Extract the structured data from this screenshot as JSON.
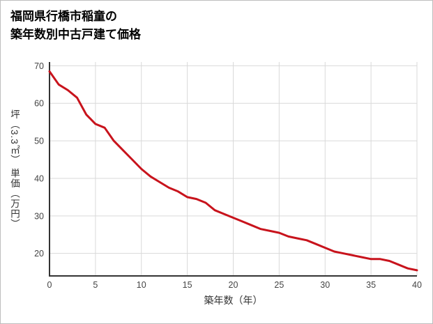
{
  "title": {
    "line1": "福岡県行橋市稲童の",
    "line2": "築年数別中古戸建て価格"
  },
  "chart_data": {
    "type": "line",
    "title": "福岡県行橋市稲童の築年数別中古戸建て価格",
    "xlabel": "築年数（年）",
    "ylabel": "坪（3.3㎡） 単価（万円）",
    "x": [
      0,
      1,
      2,
      3,
      4,
      5,
      6,
      7,
      8,
      9,
      10,
      11,
      12,
      13,
      14,
      15,
      16,
      17,
      18,
      19,
      20,
      21,
      22,
      23,
      24,
      25,
      26,
      27,
      28,
      29,
      30,
      31,
      32,
      33,
      34,
      35,
      36,
      37,
      38,
      39,
      40
    ],
    "values": [
      68.5,
      65,
      63.5,
      61.5,
      57,
      54.5,
      53.5,
      50,
      47.5,
      45,
      42.5,
      40.5,
      39,
      37.5,
      36.5,
      35,
      34.5,
      33.5,
      31.5,
      30.5,
      29.5,
      28.5,
      27.5,
      26.5,
      26,
      25.5,
      24.5,
      24,
      23.5,
      22.5,
      21.5,
      20.5,
      20,
      19.5,
      19,
      18.5,
      18.5,
      18,
      17,
      16,
      15.5
    ],
    "xlim": [
      0,
      40
    ],
    "ylim": [
      14,
      71
    ],
    "xticks": [
      0,
      5,
      10,
      15,
      20,
      25,
      30,
      35,
      40
    ],
    "yticks": [
      20,
      30,
      40,
      50,
      60,
      70
    ],
    "grid": true,
    "legend_position": "none",
    "line_color": "#c8131c",
    "grid_color": "#d9d9d9",
    "axis_color": "#333333",
    "tick_label_color": "#444444"
  }
}
